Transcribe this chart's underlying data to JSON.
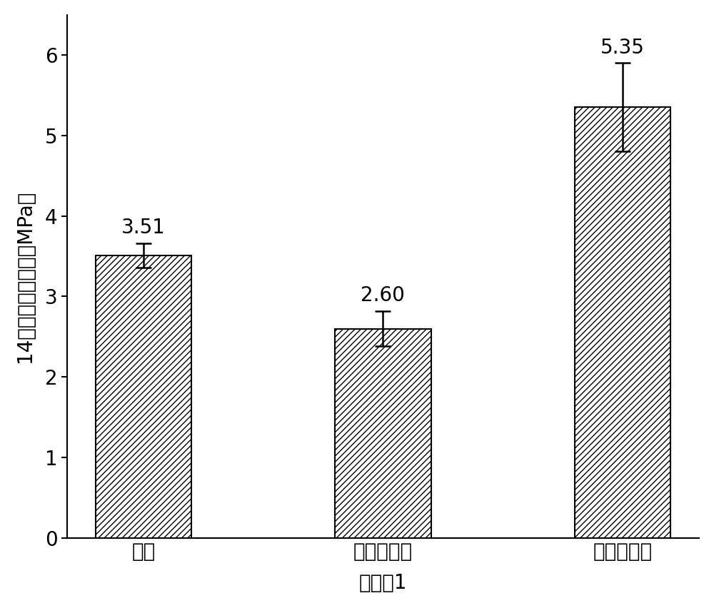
{
  "categories": [
    "基体",
    "处理前界面",
    "处理后界面"
  ],
  "values": [
    3.51,
    2.6,
    5.35
  ],
  "errors": [
    0.15,
    0.22,
    0.55
  ],
  "xlabel": "实施例1",
  "ylabel": "14天劳裂抗拉强度（MPa）",
  "ylim": [
    0,
    6.5
  ],
  "yticks": [
    0,
    1,
    2,
    3,
    4,
    5,
    6
  ],
  "bar_color": "white",
  "hatch": "////",
  "edgecolor": "#000000",
  "label_fontsize": 20,
  "tick_fontsize": 20,
  "annotation_fontsize": 20,
  "bar_width": 0.4,
  "figsize": [
    10.0,
    8.52
  ],
  "dpi": 100,
  "background_color": "#ffffff"
}
